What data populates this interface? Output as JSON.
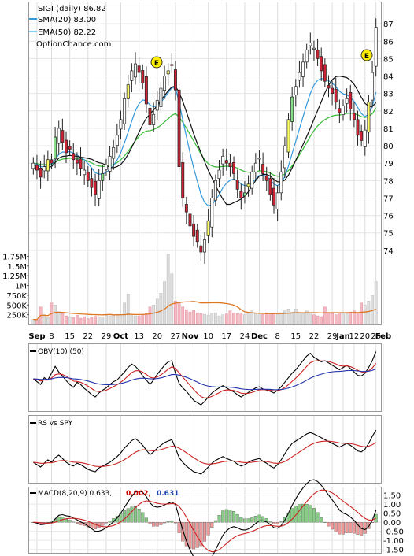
{
  "chart_data": [
    {
      "panel": "price",
      "type": "candlestick",
      "title": "SIGI (daily) 86.82",
      "legend": [
        {
          "name": "SMA(20) 83.00",
          "color": "#222222"
        },
        {
          "name": "EMA(50) 82.22",
          "color": "#7dd0f0"
        }
      ],
      "watermark": "OptionChance.com",
      "ylim": [
        73,
        88
      ],
      "yticks": [
        74,
        75,
        76,
        77,
        78,
        79,
        80,
        81,
        82,
        83,
        84,
        85,
        86,
        87
      ],
      "earnings_marker": "E",
      "colors": {
        "up": "#ffffff",
        "down": "#cc2233",
        "yellow": "#ffff66",
        "green": "#88dd88",
        "sma": "#111111",
        "ema": "#3399dd",
        "ema_long": "#33bb33"
      },
      "closes": [
        79.0,
        78.6,
        78.2,
        78.8,
        79.2,
        79.0,
        80.5,
        81.0,
        80.2,
        79.6,
        79.8,
        79.2,
        79.0,
        78.7,
        78.6,
        78.0,
        77.6,
        77.2,
        78.0,
        78.4,
        78.9,
        79.4,
        79.9,
        80.6,
        81.5,
        82.7,
        83.5,
        84.3,
        84.7,
        84.2,
        83.6,
        82.4,
        81.2,
        81.8,
        82.6,
        83.3,
        84.0,
        84.3,
        84.6,
        83.2,
        78.8,
        77.0,
        76.2,
        75.4,
        74.8,
        74.5,
        73.9,
        74.6,
        75.7,
        77.0,
        78.0,
        78.6,
        79.4,
        79.0,
        78.8,
        78.4,
        77.5,
        77.0,
        77.3,
        77.8,
        78.5,
        79.0,
        79.3,
        78.4,
        78.0,
        77.2,
        76.6,
        77.3,
        78.5,
        80.0,
        81.5,
        82.8,
        83.4,
        84.2,
        84.8,
        85.5,
        85.9,
        85.6,
        85.0,
        84.3,
        83.7,
        83.3,
        83.0,
        82.5,
        81.9,
        82.3,
        82.7,
        82.1,
        81.5,
        80.6,
        80.3,
        80.9,
        82.5,
        84.2,
        86.8
      ],
      "volumes_millions": [
        0.13,
        0.12,
        0.45,
        0.25,
        0.18,
        0.55,
        0.5,
        0.33,
        0.28,
        0.22,
        0.2,
        0.18,
        0.24,
        0.16,
        0.2,
        0.15,
        0.18,
        0.21,
        0.2,
        0.19,
        0.23,
        0.22,
        0.25,
        0.26,
        0.24,
        0.55,
        0.78,
        0.23,
        0.22,
        0.22,
        0.25,
        0.28,
        0.45,
        0.5,
        0.65,
        0.8,
        1.1,
        1.8,
        1.3,
        0.6,
        0.55,
        0.45,
        0.38,
        0.32,
        0.36,
        0.3,
        0.28,
        0.26,
        0.24,
        0.28,
        0.3,
        0.22,
        0.25,
        0.27,
        0.35,
        0.3,
        0.28,
        0.27,
        0.25,
        0.3,
        0.35,
        0.28,
        0.25,
        0.26,
        0.3,
        0.28,
        0.27,
        0.26,
        0.3,
        0.35,
        0.4,
        0.32,
        0.4,
        0.3,
        0.28,
        0.35,
        0.3,
        0.25,
        0.22,
        0.2,
        0.45,
        0.3,
        0.28,
        0.25,
        0.3,
        0.27,
        0.28,
        0.32,
        0.35,
        0.3,
        0.55,
        0.5,
        0.6,
        0.75,
        1.1
      ]
    },
    {
      "panel": "volume",
      "type": "bar",
      "yticks": [
        "1.75M",
        "1.5M",
        "1.25M",
        "1M",
        "750K",
        "500K",
        "250K"
      ],
      "ylim": [
        0,
        1.9
      ],
      "ytick_values": [
        1.75,
        1.5,
        1.25,
        1.0,
        0.75,
        0.5,
        0.25
      ],
      "avg_color": "#dd7722",
      "xticks": [
        "Sep",
        "8",
        "15",
        "22",
        "29",
        "Oct",
        "13",
        "20",
        "27",
        "Nov",
        "10",
        "17",
        "24",
        "Dec",
        "8",
        "15",
        "22",
        "29",
        "Jan",
        "12",
        "20",
        "26",
        "Feb"
      ],
      "xtick_bold": [
        "Sep",
        "Oct",
        "Nov",
        "Dec",
        "Jan",
        "Feb"
      ],
      "xtick_index": [
        1,
        5,
        10,
        15,
        20,
        24,
        29,
        34,
        39,
        43,
        48,
        53,
        58,
        62,
        67,
        72,
        77,
        82,
        85,
        88,
        91,
        94,
        96
      ]
    },
    {
      "panel": "obv",
      "type": "line",
      "title": "OBV(10) (50)",
      "colors": {
        "line": "#000000",
        "fast": "#cc2222",
        "slow": "#2233aa"
      },
      "values": [
        0.5,
        0.45,
        0.4,
        0.52,
        0.48,
        0.6,
        0.72,
        0.62,
        0.55,
        0.47,
        0.4,
        0.35,
        0.44,
        0.4,
        0.33,
        0.28,
        0.22,
        0.18,
        0.25,
        0.3,
        0.34,
        0.4,
        0.45,
        0.48,
        0.55,
        0.62,
        0.7,
        0.76,
        0.72,
        0.65,
        0.55,
        0.48,
        0.4,
        0.48,
        0.58,
        0.66,
        0.74,
        0.8,
        0.82,
        0.6,
        0.42,
        0.34,
        0.28,
        0.2,
        0.12,
        0.08,
        0.04,
        0.1,
        0.18,
        0.25,
        0.3,
        0.34,
        0.38,
        0.34,
        0.3,
        0.27,
        0.22,
        0.18,
        0.22,
        0.26,
        0.3,
        0.34,
        0.36,
        0.32,
        0.3,
        0.28,
        0.25,
        0.3,
        0.36,
        0.44,
        0.52,
        0.6,
        0.66,
        0.74,
        0.82,
        0.9,
        0.95,
        0.88,
        0.84,
        0.8,
        0.82,
        0.78,
        0.74,
        0.7,
        0.66,
        0.7,
        0.74,
        0.68,
        0.62,
        0.56,
        0.55,
        0.6,
        0.7,
        0.82,
        0.98
      ]
    },
    {
      "panel": "rs",
      "type": "line",
      "title": "RS vs SPY",
      "colors": {
        "line": "#000000",
        "avg": "#cc2222"
      },
      "values": [
        0.3,
        0.25,
        0.2,
        0.28,
        0.35,
        0.3,
        0.4,
        0.45,
        0.38,
        0.3,
        0.25,
        0.22,
        0.28,
        0.25,
        0.2,
        0.15,
        0.12,
        0.1,
        0.18,
        0.22,
        0.26,
        0.3,
        0.36,
        0.42,
        0.5,
        0.6,
        0.68,
        0.76,
        0.8,
        0.74,
        0.66,
        0.56,
        0.46,
        0.52,
        0.6,
        0.66,
        0.72,
        0.75,
        0.78,
        0.6,
        0.4,
        0.3,
        0.22,
        0.16,
        0.1,
        0.08,
        0.05,
        0.12,
        0.2,
        0.28,
        0.34,
        0.38,
        0.42,
        0.38,
        0.35,
        0.32,
        0.26,
        0.22,
        0.25,
        0.3,
        0.34,
        0.36,
        0.38,
        0.32,
        0.28,
        0.22,
        0.18,
        0.25,
        0.35,
        0.48,
        0.6,
        0.7,
        0.75,
        0.8,
        0.85,
        0.9,
        0.93,
        0.9,
        0.86,
        0.82,
        0.78,
        0.74,
        0.7,
        0.66,
        0.62,
        0.66,
        0.7,
        0.66,
        0.6,
        0.54,
        0.52,
        0.58,
        0.7,
        0.85,
        0.98
      ]
    },
    {
      "panel": "macd",
      "type": "line+bar",
      "title": "MACD(8,20,9) 0.633,",
      "signal_label": "0.002,",
      "hist_label": "0.631",
      "ylim": [
        -1.6,
        1.7
      ],
      "yticks": [
        "1.50",
        "1.00",
        "0.50",
        "0.00",
        "-0.50",
        "-1.00",
        "-1.50"
      ],
      "ytick_values": [
        1.5,
        1.0,
        0.5,
        0.0,
        -0.5,
        -1.0,
        -1.5
      ],
      "colors": {
        "macd": "#000000",
        "signal": "#cc2222",
        "hist_up": "#88cc88",
        "hist_down": "#ee9999",
        "signal_label": "#cc0000",
        "hist_label": "#2244aa"
      }
    }
  ],
  "x_count": 95
}
